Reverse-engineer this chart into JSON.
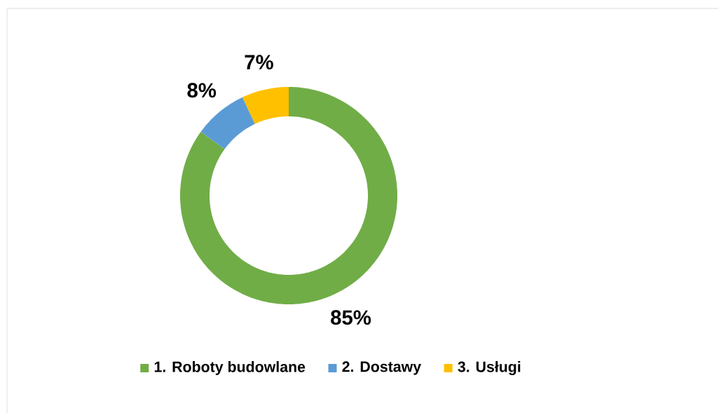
{
  "chart_data": {
    "type": "donut",
    "categories": [
      "1. Roboty budowlane",
      "2. Dostawy",
      "3. Usługi"
    ],
    "values": [
      85,
      8,
      7
    ],
    "colors": [
      "#70ad47",
      "#5b9bd5",
      "#ffc000"
    ],
    "value_labels": [
      "85%",
      "8%",
      "7%"
    ],
    "legend": "bottom"
  }
}
